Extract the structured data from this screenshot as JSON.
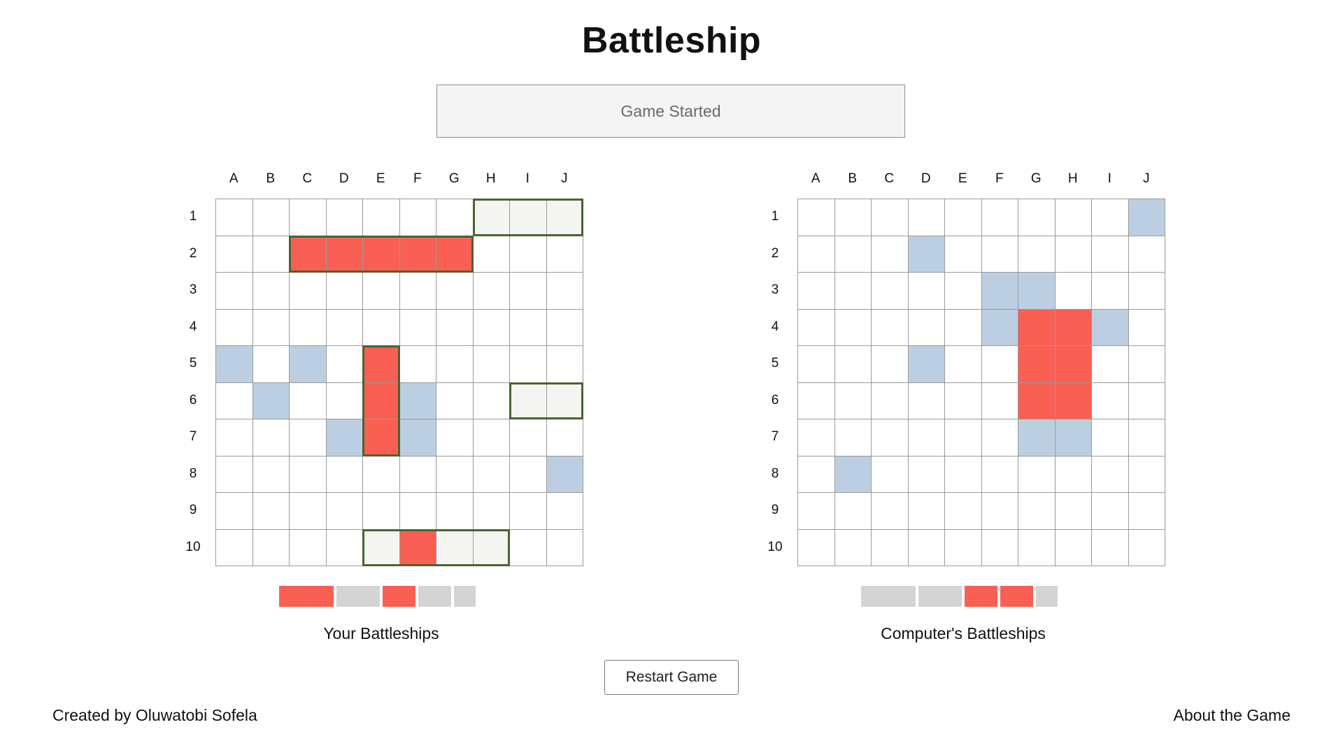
{
  "title": "Battleship",
  "status": "Game Started",
  "columns": [
    "A",
    "B",
    "C",
    "D",
    "E",
    "F",
    "G",
    "H",
    "I",
    "J"
  ],
  "rows": [
    "1",
    "2",
    "3",
    "4",
    "5",
    "6",
    "7",
    "8",
    "9",
    "10"
  ],
  "colors": {
    "hit": "#f95f53",
    "miss": "#bccfe2",
    "ship": "#f4f4f2",
    "ship_outline": "#4a6331",
    "fleet_remaining": "#d4d4d4"
  },
  "player_board": {
    "caption": "Your Battleships",
    "cells": {
      "H1": "ship",
      "I1": "ship",
      "J1": "ship",
      "C2": "hit",
      "D2": "hit",
      "E2": "hit",
      "F2": "hit",
      "G2": "hit",
      "A5": "miss",
      "C5": "miss",
      "E5": "hit",
      "B6": "miss",
      "E6": "hit",
      "F6": "miss",
      "I6": "ship",
      "J6": "ship",
      "D7": "miss",
      "E7": "hit",
      "F7": "miss",
      "J8": "miss",
      "E10": "ship",
      "F10": "hit",
      "G10": "ship",
      "H10": "ship"
    },
    "ships": [
      {
        "start": "H1",
        "end": "J1"
      },
      {
        "start": "C2",
        "end": "G2"
      },
      {
        "start": "E5",
        "end": "E7"
      },
      {
        "start": "I6",
        "end": "J6"
      },
      {
        "start": "E10",
        "end": "H10"
      }
    ],
    "fleet": [
      {
        "size": 5,
        "sunk": true
      },
      {
        "size": 4,
        "sunk": false
      },
      {
        "size": 3,
        "sunk": true
      },
      {
        "size": 3,
        "sunk": false
      },
      {
        "size": 2,
        "sunk": false
      }
    ]
  },
  "computer_board": {
    "caption": "Computer's Battleships",
    "cells": {
      "J1": "miss",
      "D2": "miss",
      "F3": "miss",
      "G3": "miss",
      "F4": "miss",
      "G4": "hit",
      "H4": "hit",
      "I4": "miss",
      "D5": "miss",
      "G5": "hit",
      "H5": "hit",
      "G6": "hit",
      "H6": "hit",
      "G7": "miss",
      "H7": "miss",
      "B8": "miss"
    },
    "fleet": [
      {
        "size": 5,
        "sunk": false
      },
      {
        "size": 4,
        "sunk": false
      },
      {
        "size": 3,
        "sunk": true
      },
      {
        "size": 3,
        "sunk": true
      },
      {
        "size": 2,
        "sunk": false
      }
    ]
  },
  "restart_label": "Restart Game",
  "footer": {
    "credit": "Created by Oluwatobi Sofela",
    "about": "About the Game"
  }
}
